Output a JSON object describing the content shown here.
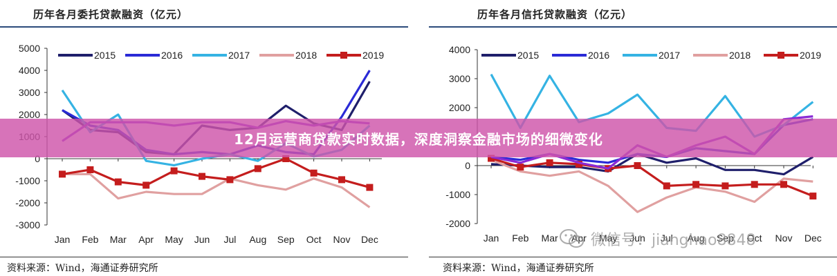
{
  "charts": [
    {
      "title": "历年各月委托贷款融资（亿元）",
      "source": "资料来源：Wind，海通证券研究所"
    },
    {
      "title": "历年各月信托贷款融资（亿元）",
      "source": "资料来源：Wind，海通证券研究所"
    }
  ],
  "banner": {
    "text": "12月运营商贷款实时数据，深度洞察金融市场的细微变化"
  },
  "watermark": {
    "text": "微信号：jianghao8848",
    "icon": "wechat-icon"
  },
  "colors": {
    "2015": "#1f1f6b",
    "2016": "#2a2ad6",
    "2017": "#35b3e3",
    "2018": "#e0a0a0",
    "2019": "#c41d1d",
    "purple": "#8a2ad6",
    "banner": "#ce54aa"
  },
  "chart_data": [
    {
      "type": "line",
      "categories": [
        "Jan",
        "Feb",
        "Mar",
        "Apr",
        "May",
        "Jun",
        "Jul",
        "Aug",
        "Sep",
        "Oct",
        "Nov",
        "Dec"
      ],
      "ylim": [
        -3000,
        5000
      ],
      "yticks": [
        -3000,
        -2000,
        -1000,
        0,
        1000,
        2000,
        3000,
        4000,
        5000
      ],
      "grid": false,
      "legend": "top",
      "series": [
        {
          "name": "2015",
          "color": "#1f1f6b",
          "marker": false,
          "values": [
            2200,
            1300,
            1200,
            300,
            200,
            1500,
            1300,
            1400,
            2400,
            1600,
            1300,
            3500
          ]
        },
        {
          "name": "2016",
          "color": "#2a2ad6",
          "marker": false,
          "values": [
            2200,
            1500,
            1300,
            400,
            200,
            300,
            200,
            600,
            300,
            200,
            1900,
            4000
          ]
        },
        {
          "name": "2017",
          "color": "#35b3e3",
          "marker": false,
          "values": [
            3100,
            1200,
            2000,
            -100,
            -300,
            0,
            200,
            -100,
            700,
            100,
            400,
            1500
          ]
        },
        {
          "name": "2018",
          "color": "#e0a0a0",
          "marker": false,
          "values": [
            -700,
            -700,
            -1800,
            -1500,
            -1600,
            -1600,
            -900,
            -1200,
            -1400,
            -900,
            -1300,
            -2200
          ]
        },
        {
          "name": "2019",
          "color": "#c41d1d",
          "marker": true,
          "values": [
            -700,
            -500,
            -1050,
            -1200,
            -550,
            -800,
            -950,
            -450,
            0,
            -650,
            -950,
            -1300
          ]
        },
        {
          "name": "",
          "color": "#8a2ad6",
          "marker": false,
          "values": [
            800,
            1650,
            1650,
            1650,
            1500,
            1650,
            1650,
            1400,
            1700,
            1500,
            1700,
            1600
          ]
        }
      ]
    },
    {
      "type": "line",
      "categories": [
        "Jan",
        "Feb",
        "Mar",
        "Apr",
        "May",
        "Jun",
        "Jul",
        "Aug",
        "Sep",
        "Oct",
        "Nov",
        "Dec"
      ],
      "ylim": [
        -2000,
        4000
      ],
      "yticks": [
        -2000,
        -1000,
        0,
        1000,
        2000,
        3000,
        4000
      ],
      "grid": false,
      "legend": "top",
      "series": [
        {
          "name": "2015",
          "color": "#1f1f6b",
          "marker": false,
          "values": [
            50,
            0,
            -50,
            -50,
            -200,
            400,
            100,
            250,
            -150,
            -150,
            -300,
            300
          ]
        },
        {
          "name": "2016",
          "color": "#2a2ad6",
          "marker": false,
          "values": [
            300,
            200,
            400,
            200,
            100,
            400,
            300,
            600,
            500,
            400,
            1400,
            1600
          ]
        },
        {
          "name": "2017",
          "color": "#35b3e3",
          "marker": false,
          "values": [
            3150,
            1300,
            3100,
            1500,
            1800,
            2450,
            1300,
            1200,
            2400,
            1000,
            1400,
            2200
          ]
        },
        {
          "name": "2018",
          "color": "#e0a0a0",
          "marker": false,
          "values": [
            200,
            -200,
            -350,
            -200,
            -700,
            -1600,
            -1100,
            -750,
            -900,
            -1250,
            -450,
            -550
          ]
        },
        {
          "name": "2019",
          "color": "#c41d1d",
          "marker": true,
          "values": [
            250,
            -50,
            100,
            50,
            -100,
            0,
            -700,
            -650,
            -700,
            -650,
            -650,
            -1050
          ]
        },
        {
          "name": "",
          "color": "#8a2ad6",
          "marker": false,
          "values": [
            300,
            100,
            400,
            100,
            -100,
            700,
            300,
            700,
            1000,
            400,
            1600,
            1700
          ]
        }
      ]
    }
  ]
}
